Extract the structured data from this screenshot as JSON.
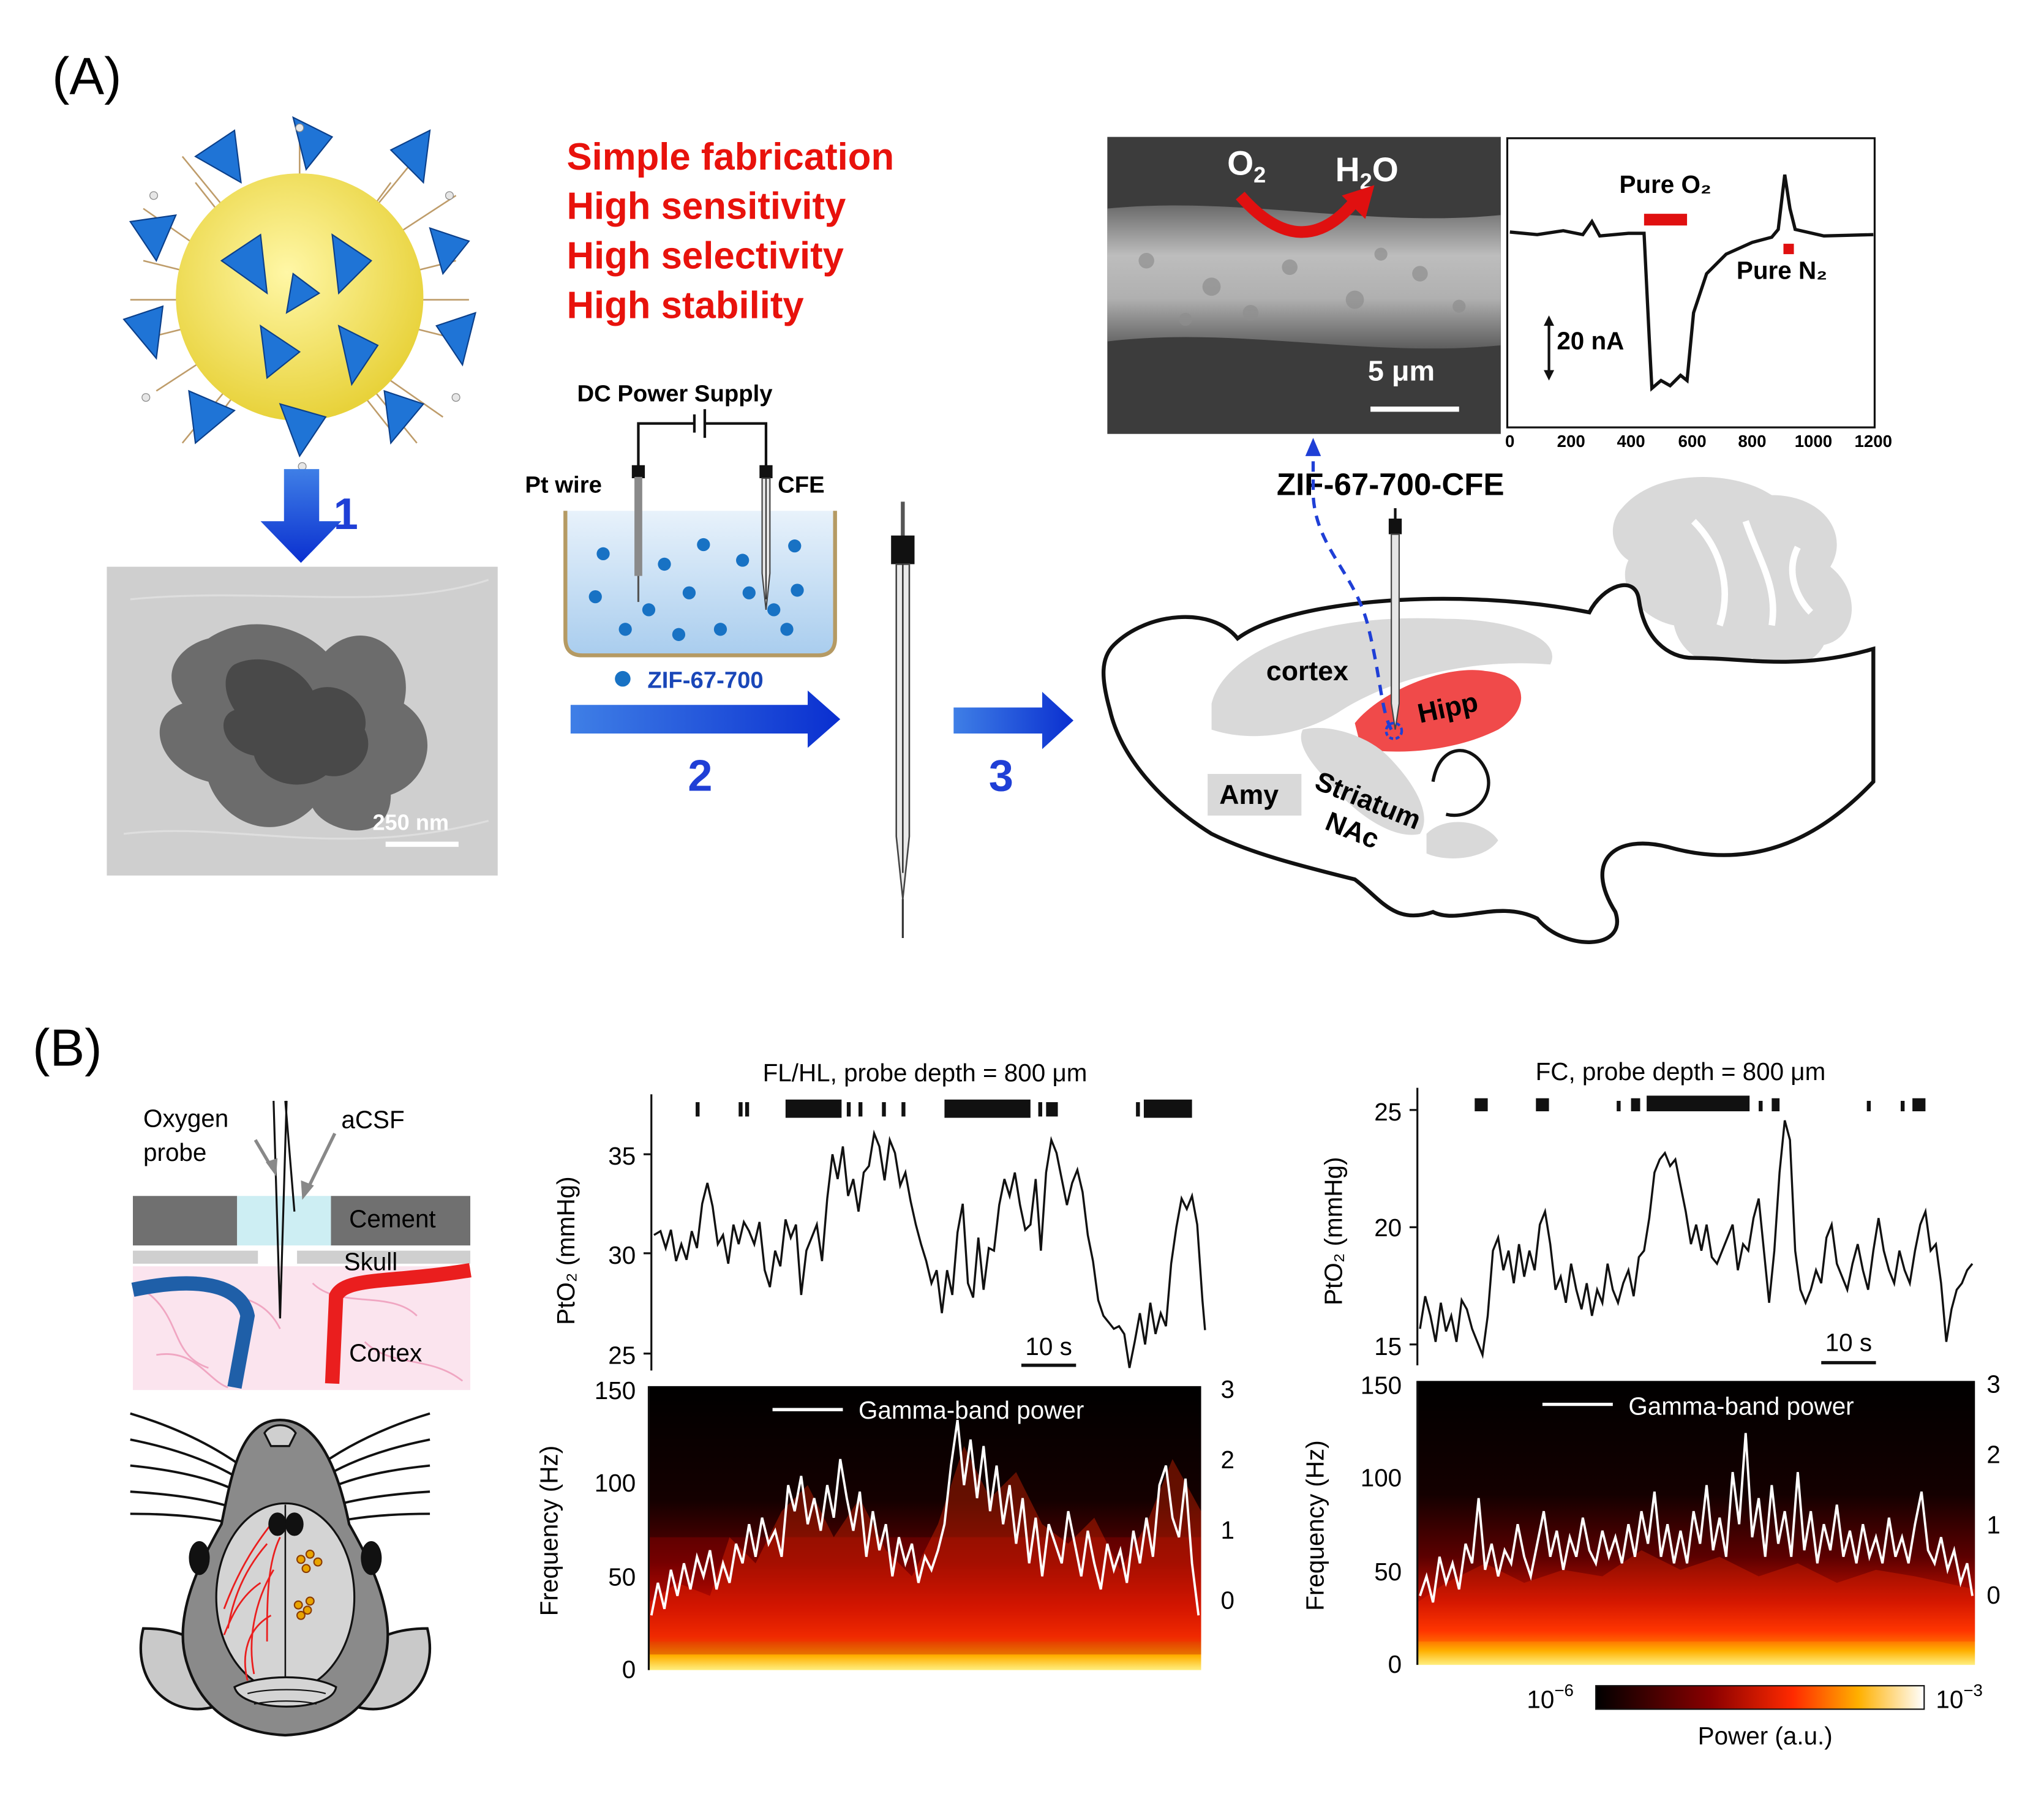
{
  "panel_a": {
    "label": "(A)",
    "features": [
      "Simple fabrication",
      "High sensitivity",
      "High selectivity",
      "High stability"
    ],
    "steps": [
      "1",
      "2",
      "3"
    ],
    "tem_scale": "250 nm",
    "power_supply": "DC Power Supply",
    "pt_wire": "Pt wire",
    "cfe": "CFE",
    "particle_legend": "ZIF-67-700",
    "sem": {
      "o2_base": "O",
      "o2_sub": "2",
      "h2o_h": "H",
      "h2o_sub": "2",
      "h2o_o": "O",
      "scale": "5 μm"
    },
    "electrode_label": "ZIF-67-700-CFE",
    "brain_regions": [
      "cortex",
      "Hipp",
      "Amy",
      "Striatum",
      "NAc"
    ],
    "current_trace": {
      "pure_o2": "Pure O₂",
      "pure_n2": "Pure N₂",
      "scale": "20 nA",
      "x_ticks": [
        "0",
        "200",
        "400",
        "600",
        "800",
        "1000",
        "1200"
      ]
    }
  },
  "panel_b": {
    "label": "(B)",
    "schematic": {
      "oxygen": "Oxygen",
      "probe": "probe",
      "acsf": "aCSF",
      "cement": "Cement",
      "skull": "Skull",
      "cortex": "Cortex"
    },
    "left_plot": {
      "title": "FL/HL, probe depth = 800 μm",
      "ylabel_top": "PtO₂ (mmHg)",
      "yticks_top": [
        "25",
        "30",
        "35"
      ],
      "scale_bar": "10 s",
      "legend": "Gamma-band power",
      "ylabel_bottom": "Frequency (Hz)",
      "yticks_bottom": [
        "0",
        "50",
        "100",
        "150"
      ],
      "right_ticks": [
        "0",
        "1",
        "2",
        "3"
      ]
    },
    "right_plot": {
      "title": "FC, probe depth = 800 μm",
      "ylabel_top": "PtO₂ (mmHg)",
      "yticks_top": [
        "15",
        "20",
        "25"
      ],
      "scale_bar": "10 s",
      "legend": "Gamma-band power",
      "ylabel_bottom": "Frequency (Hz)",
      "yticks_bottom": [
        "0",
        "50",
        "100",
        "150"
      ],
      "right_ticks": [
        "0",
        "1",
        "2",
        "3"
      ]
    },
    "colorbar": {
      "low_base": "10",
      "low_exp": "−6",
      "high_base": "10",
      "high_exp": "−3",
      "label": "Power (a.u.)"
    }
  },
  "colors": {
    "feature_red": "#e8120c",
    "step_blue": "#1f3fd6",
    "hipp_red": "#f04a4a"
  }
}
